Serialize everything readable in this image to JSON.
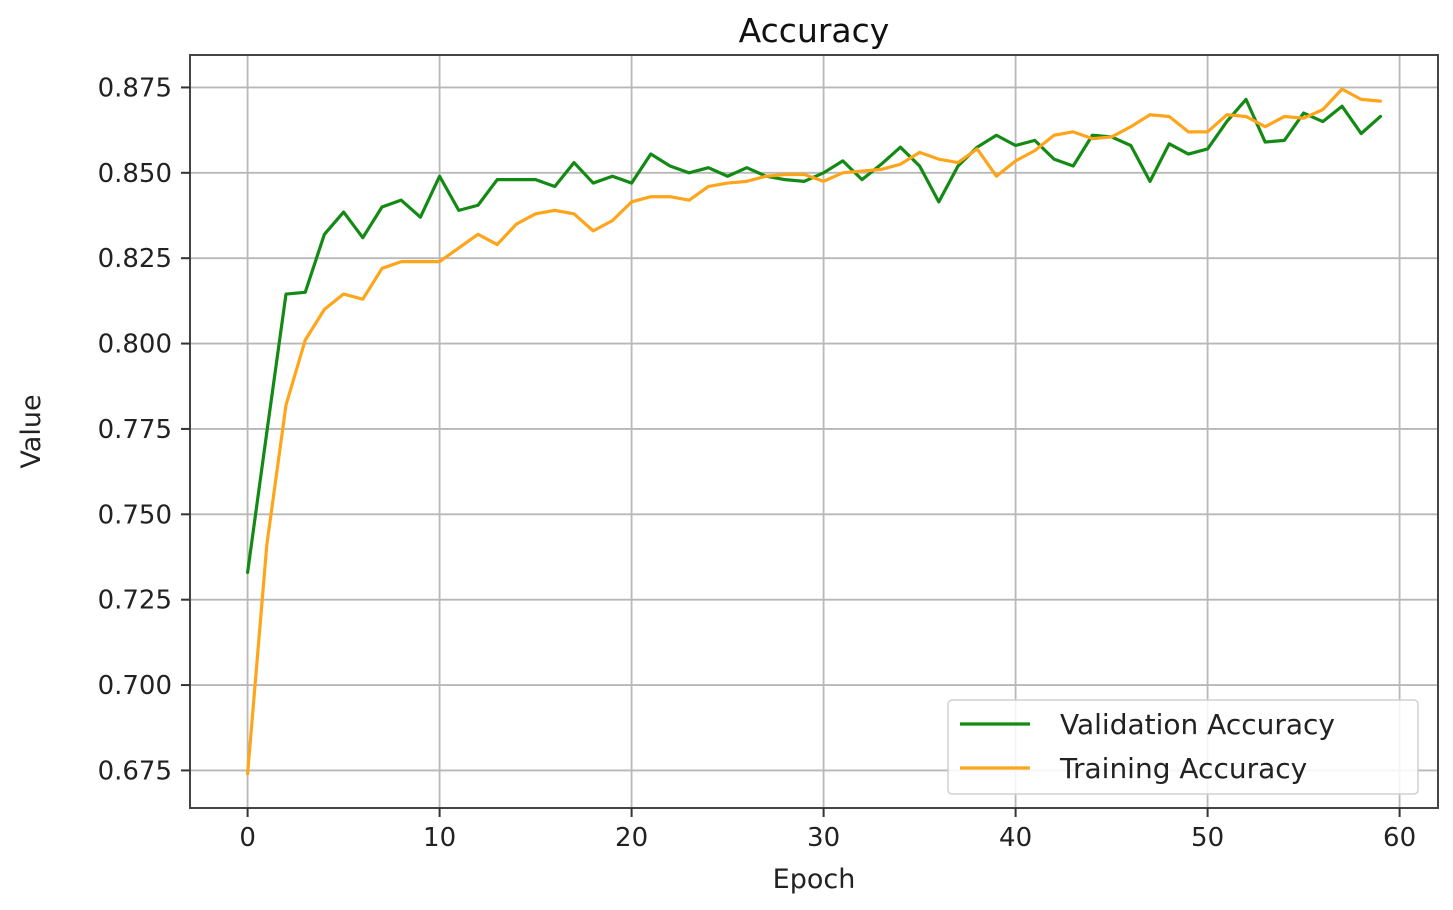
{
  "chart_data": {
    "type": "line",
    "title": "Accuracy",
    "xlabel": "Epoch",
    "ylabel": "Value",
    "xlim": [
      -3,
      62
    ],
    "ylim": [
      0.664,
      0.8845
    ],
    "xticks": [
      0,
      10,
      20,
      30,
      40,
      50,
      60
    ],
    "yticks": [
      0.675,
      0.7,
      0.725,
      0.75,
      0.775,
      0.8,
      0.825,
      0.85,
      0.875
    ],
    "ytick_labels": [
      "0.675",
      "0.700",
      "0.725",
      "0.750",
      "0.775",
      "0.800",
      "0.825",
      "0.850",
      "0.875"
    ],
    "xtick_labels": [
      "0",
      "10",
      "20",
      "30",
      "40",
      "50",
      "60"
    ],
    "grid": true,
    "legend_position": "lower-right",
    "x": [
      0,
      1,
      2,
      3,
      4,
      5,
      6,
      7,
      8,
      9,
      10,
      11,
      12,
      13,
      14,
      15,
      16,
      17,
      18,
      19,
      20,
      21,
      22,
      23,
      24,
      25,
      26,
      27,
      28,
      29,
      30,
      31,
      32,
      33,
      34,
      35,
      36,
      37,
      38,
      39,
      40,
      41,
      42,
      43,
      44,
      45,
      46,
      47,
      48,
      49,
      50,
      51,
      52,
      53,
      54,
      55,
      56,
      57,
      58,
      59
    ],
    "series": [
      {
        "name": "Validation Accuracy",
        "color": "#138a13",
        "values": [
          0.733,
          0.774,
          0.8145,
          0.815,
          0.832,
          0.8385,
          0.831,
          0.84,
          0.842,
          0.837,
          0.849,
          0.839,
          0.8405,
          0.848,
          0.848,
          0.848,
          0.846,
          0.853,
          0.847,
          0.849,
          0.847,
          0.8555,
          0.852,
          0.85,
          0.8515,
          0.849,
          0.8515,
          0.849,
          0.848,
          0.8475,
          0.85,
          0.8535,
          0.848,
          0.8525,
          0.8575,
          0.852,
          0.8415,
          0.852,
          0.8575,
          0.861,
          0.858,
          0.8595,
          0.854,
          0.852,
          0.861,
          0.8605,
          0.858,
          0.8475,
          0.8585,
          0.8555,
          0.857,
          0.865,
          0.8715,
          0.859,
          0.8595,
          0.8675,
          0.865,
          0.8695,
          0.8615,
          0.8665
        ]
      },
      {
        "name": "Training Accuracy",
        "color": "#ffa51c",
        "values": [
          0.674,
          0.741,
          0.782,
          0.801,
          0.81,
          0.8145,
          0.813,
          0.822,
          0.824,
          0.824,
          0.824,
          0.828,
          0.832,
          0.829,
          0.835,
          0.838,
          0.839,
          0.838,
          0.833,
          0.836,
          0.8415,
          0.843,
          0.843,
          0.842,
          0.846,
          0.847,
          0.8475,
          0.849,
          0.8495,
          0.8495,
          0.8475,
          0.85,
          0.8505,
          0.851,
          0.8525,
          0.856,
          0.854,
          0.853,
          0.857,
          0.849,
          0.8535,
          0.8565,
          0.861,
          0.862,
          0.86,
          0.8605,
          0.8635,
          0.867,
          0.8665,
          0.862,
          0.862,
          0.867,
          0.8665,
          0.8635,
          0.8665,
          0.866,
          0.8685,
          0.8745,
          0.8715,
          0.871
        ]
      }
    ]
  }
}
